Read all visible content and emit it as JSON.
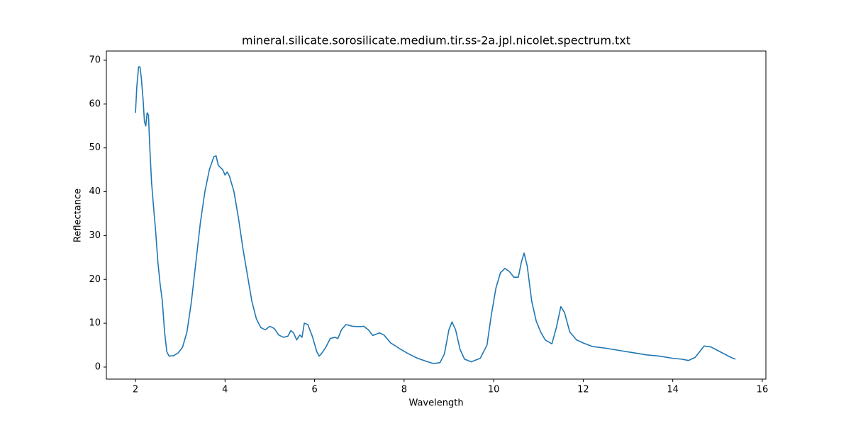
{
  "chart_data": {
    "type": "line",
    "title": "mineral.silicate.sorosilicate.medium.tir.ss-2a.jpl.nicolet.spectrum.txt",
    "x_label": "Wavelength",
    "y_label": "Reflectance",
    "xlim": [
      1.35,
      16.08
    ],
    "ylim": [
      -2.75,
      72.1
    ],
    "xticks": [
      2,
      4,
      6,
      8,
      10,
      12,
      14,
      16
    ],
    "yticks": [
      0,
      10,
      20,
      30,
      40,
      50,
      60,
      70
    ],
    "grid": false,
    "series": [
      {
        "color": "#1f77b4",
        "x": [
          2.0,
          2.03,
          2.07,
          2.1,
          2.13,
          2.17,
          2.2,
          2.23,
          2.26,
          2.29,
          2.32,
          2.36,
          2.4,
          2.45,
          2.5,
          2.55,
          2.6,
          2.65,
          2.7,
          2.75,
          2.85,
          2.95,
          3.05,
          3.15,
          3.25,
          3.35,
          3.45,
          3.55,
          3.65,
          3.75,
          3.8,
          3.85,
          3.95,
          4.0,
          4.05,
          4.1,
          4.2,
          4.3,
          4.4,
          4.5,
          4.6,
          4.7,
          4.8,
          4.9,
          5.0,
          5.1,
          5.2,
          5.3,
          5.4,
          5.47,
          5.53,
          5.6,
          5.67,
          5.72,
          5.77,
          5.85,
          5.95,
          6.05,
          6.1,
          6.15,
          6.25,
          6.35,
          6.45,
          6.52,
          6.6,
          6.7,
          6.85,
          7.0,
          7.1,
          7.2,
          7.3,
          7.45,
          7.55,
          7.7,
          7.9,
          8.1,
          8.3,
          8.5,
          8.65,
          8.8,
          8.9,
          9.0,
          9.07,
          9.15,
          9.25,
          9.35,
          9.5,
          9.7,
          9.85,
          9.95,
          10.05,
          10.15,
          10.25,
          10.35,
          10.45,
          10.55,
          10.62,
          10.68,
          10.75,
          10.85,
          10.95,
          11.05,
          11.15,
          11.3,
          11.4,
          11.5,
          11.58,
          11.7,
          11.85,
          12.0,
          12.2,
          12.5,
          12.8,
          13.1,
          13.4,
          13.7,
          14.0,
          14.2,
          14.35,
          14.5,
          14.6,
          14.7,
          14.85,
          15.0,
          15.15,
          15.3,
          15.4
        ],
        "values": [
          58,
          64,
          68.5,
          68.5,
          66,
          61,
          56,
          55,
          58,
          57.5,
          50,
          42,
          37,
          31,
          24,
          19,
          15,
          8,
          3.5,
          2.5,
          2.6,
          3.2,
          4.5,
          8,
          15,
          24,
          33,
          40,
          45,
          48,
          48.2,
          46,
          45,
          43.8,
          44.5,
          43.5,
          40,
          34,
          27,
          21,
          15,
          11,
          9,
          8.5,
          9.3,
          8.8,
          7.3,
          6.8,
          7,
          8.3,
          7.8,
          6.2,
          7.3,
          6.8,
          10,
          9.7,
          7,
          3.5,
          2.5,
          3,
          4.5,
          6.5,
          6.8,
          6.5,
          8.5,
          9.7,
          9.3,
          9.2,
          9.3,
          8.5,
          7.2,
          7.8,
          7.3,
          5.5,
          4.2,
          3,
          2,
          1.3,
          0.8,
          1,
          3,
          8.5,
          10.3,
          8.5,
          4,
          1.8,
          1.2,
          2,
          5,
          12,
          18,
          21.5,
          22.5,
          21.8,
          20.5,
          20.5,
          24,
          26,
          23,
          15,
          10.5,
          8,
          6.2,
          5.3,
          9,
          13.8,
          12.5,
          8,
          6.2,
          5.5,
          4.7,
          4.3,
          3.8,
          3.3,
          2.8,
          2.5,
          2,
          1.8,
          1.5,
          2.2,
          3.5,
          4.8,
          4.6,
          3.8,
          3,
          2.2,
          1.8
        ]
      }
    ]
  }
}
